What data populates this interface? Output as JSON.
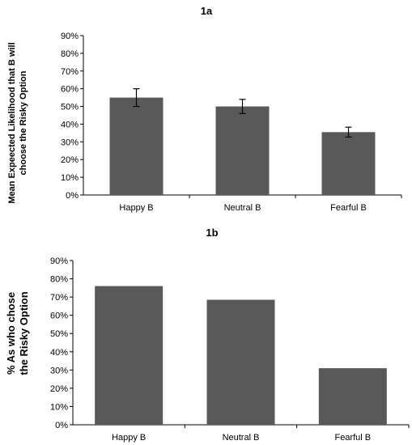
{
  "chart_data": [
    {
      "type": "bar",
      "title": "1a",
      "ylabel_lines": [
        "Mean Expeected Likelihood that B will",
        "choose the Risky Option"
      ],
      "categories": [
        "Happy B",
        "Neutral B",
        "Fearful B"
      ],
      "values": [
        55,
        50,
        35.5
      ],
      "errors": [
        5,
        4,
        2.8
      ],
      "ylim": [
        0,
        90
      ],
      "yticks": [
        "0%",
        "10%",
        "20%",
        "30%",
        "40%",
        "50%",
        "60%",
        "70%",
        "80%",
        "90%"
      ],
      "bar_color": "#595959",
      "grid": false,
      "legend": "none"
    },
    {
      "type": "bar",
      "title": "1b",
      "ylabel_lines": [
        "% As who chose",
        "the Risky Option"
      ],
      "categories": [
        "Happy B",
        "Neutral B",
        "Fearful B"
      ],
      "values": [
        76,
        68.5,
        31
      ],
      "ylim": [
        0,
        90
      ],
      "yticks": [
        "0%",
        "10%",
        "20%",
        "30%",
        "40%",
        "50%",
        "60%",
        "70%",
        "80%",
        "90%"
      ],
      "bar_color": "#595959",
      "grid": false,
      "legend": "none"
    }
  ]
}
